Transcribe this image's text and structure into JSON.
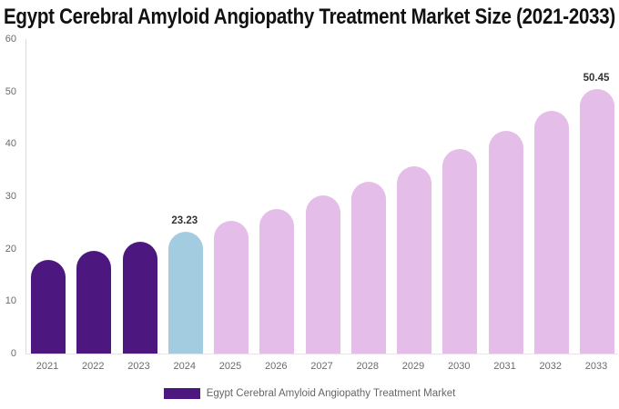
{
  "title": "Egypt Cerebral Amyloid Angiopathy Treatment Market Size (2021-2033)",
  "legend": {
    "label": "Egypt Cerebral Amyloid Angiopathy Treatment Market",
    "swatch_color": "#4D1780"
  },
  "colors": {
    "historical_bar": "#4D1780",
    "base_year_bar": "#A4CCE0",
    "forecast_bar": "#E4BDE8",
    "title_text": "#111111",
    "axis_text": "#6B6B6B",
    "data_label_text": "#333333"
  },
  "chart_data": {
    "type": "bar",
    "title": "Egypt Cerebral Amyloid Angiopathy Treatment Market Size (2021-2033)",
    "xlabel": "",
    "ylabel": "",
    "categories": [
      "2021",
      "2022",
      "2023",
      "2024",
      "2025",
      "2026",
      "2027",
      "2028",
      "2029",
      "2030",
      "2031",
      "2032",
      "2033"
    ],
    "values": [
      17.94,
      19.55,
      21.31,
      23.23,
      25.32,
      27.6,
      30.09,
      32.8,
      35.75,
      38.97,
      42.48,
      46.31,
      50.45
    ],
    "bar_colors": [
      "#4D1780",
      "#4D1780",
      "#4D1780",
      "#A4CCE0",
      "#E4BDE8",
      "#E4BDE8",
      "#E4BDE8",
      "#E4BDE8",
      "#E4BDE8",
      "#E4BDE8",
      "#E4BDE8",
      "#E4BDE8",
      "#E4BDE8"
    ],
    "point_labels": [
      "",
      "",
      "",
      "23.23",
      "",
      "",
      "",
      "",
      "",
      "",
      "",
      "",
      "50.45"
    ],
    "ylim": [
      0,
      60
    ],
    "y_ticks": [
      "0",
      "10",
      "20",
      "30",
      "40",
      "50",
      "60"
    ],
    "grid": "off",
    "legend_position": "bottom-center",
    "legend_entries": [
      "Egypt Cerebral Amyloid Angiopathy Treatment Market"
    ]
  }
}
